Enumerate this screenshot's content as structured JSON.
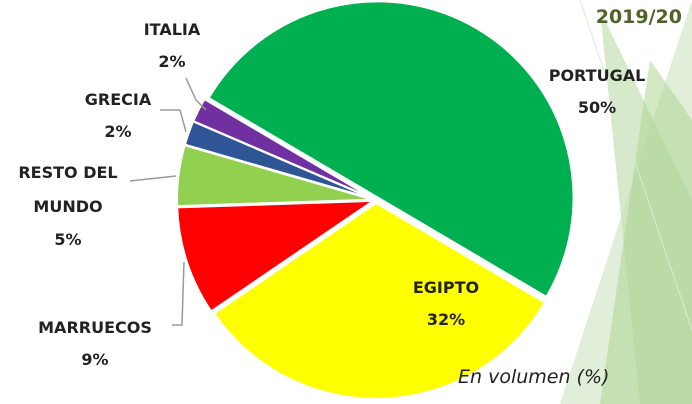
{
  "chart_data": {
    "type": "pie",
    "title": "2019/20",
    "subtitle": "En volumen (%)",
    "categories": [
      "PORTUGAL",
      "EGIPTO",
      "MARRUECOS",
      "RESTO DEL MUNDO",
      "GRECIA",
      "ITALIA"
    ],
    "values": [
      50,
      32,
      9,
      5,
      2,
      2
    ],
    "value_labels": [
      "50%",
      "32%",
      "9%",
      "5%",
      "2%",
      "2%"
    ],
    "colors": [
      "#00b050",
      "#ffff00",
      "#ff0000",
      "#92d050",
      "#2f5597",
      "#7030a0"
    ]
  }
}
